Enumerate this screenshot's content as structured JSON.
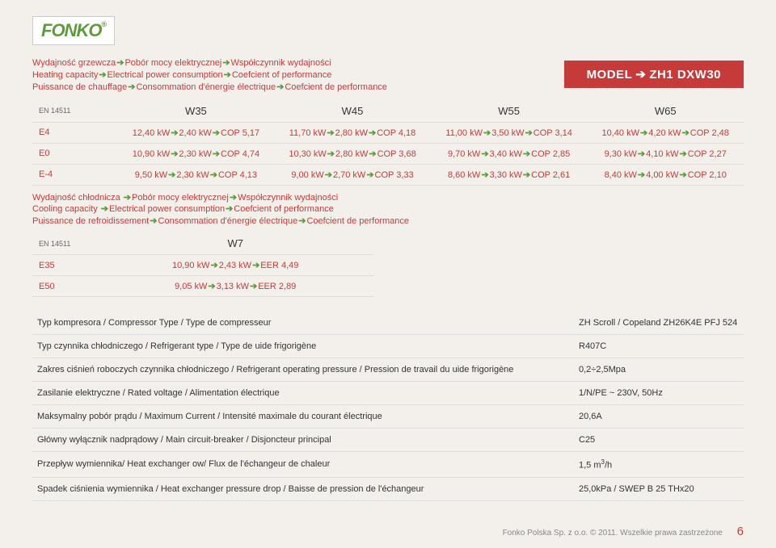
{
  "logo": "FONKO",
  "model": {
    "label": "MODEL",
    "value": "ZH1 DXW30"
  },
  "heatingDesc": {
    "pl": [
      "Wydajność grzewcza",
      "Pobór mocy elektrycznej",
      "Współczynnik wydajności"
    ],
    "en": [
      "Heating capacity",
      "Electrical power consumption",
      "Coefcient of performance"
    ],
    "fr": [
      "Puissance de chauffage",
      "Consommation d'énergie électrique",
      "Coefcient de  performance"
    ]
  },
  "heatHead": {
    "std": "EN 14511",
    "cols": [
      "W35",
      "W45",
      "W55",
      "W65"
    ]
  },
  "heatRows": [
    {
      "r": "E4",
      "c": [
        "12,40 kW➔2,40 kW➔COP 5,17",
        "11,70 kW➔2,80 kW➔COP 4,18",
        "11,00 kW➔3,50 kW➔COP 3,14",
        "10,40 kW➔4,20 kW➔COP 2,48"
      ]
    },
    {
      "r": "E0",
      "c": [
        "10,90 kW➔2,30 kW➔COP 4,74",
        "10,30 kW➔2,80 kW➔COP 3,68",
        "9,70 kW➔3,40 kW➔COP 2,85",
        "9,30 kW➔4,10 kW➔COP 2,27"
      ]
    },
    {
      "r": "E-4",
      "c": [
        "9,50 kW➔2,30 kW➔COP 4,13",
        "9,00 kW➔2,70 kW➔COP 3,33",
        "8,60 kW➔3,30 kW➔COP 2,61",
        "8,40 kW➔4,00 kW➔COP 2,10"
      ]
    }
  ],
  "coolingDesc": {
    "pl": [
      "Wydajność chłodnicza",
      "Pobór mocy elektrycznej",
      "Współczynnik wydajności"
    ],
    "en": [
      "Cooling capacity",
      "Electrical power consumption",
      "Coefcient of performance"
    ],
    "fr": [
      "Puissance de refroidissement",
      "Consommation d'énergie électrique",
      "Coefcient de  performance"
    ]
  },
  "coolHead": {
    "std": "EN 14511",
    "col": "W7"
  },
  "coolRows": [
    {
      "r": "E35",
      "v": "10,90 kW➔2,43 kW➔EER 4,49"
    },
    {
      "r": "E50",
      "v": "9,05 kW➔3,13 kW➔EER 2,89"
    }
  ],
  "spec": [
    {
      "l": "Typ kompresora / Compressor Type / Type de compresseur",
      "v": "ZH Scroll / Copeland ZH26K4E PFJ 524"
    },
    {
      "l": "Typ czynnika chłodniczego / Refrigerant type /  Type de uide frigorigène",
      "v": "R407C"
    },
    {
      "l": "Zakres ciśnień roboczych czynnika chłodniczego / Refrigerant operating pressure / Pression de travail du uide frigorigène",
      "v": "0,2÷2,5Mpa"
    },
    {
      "l": "Zasilanie elektryczne / Rated voltage / Alimentation électrique",
      "v": "1/N/PE ~ 230V, 50Hz"
    },
    {
      "l": "Maksymalny pobór prądu / Maximum Current / Intensité  maximale  du courant  électrique",
      "v": "20,6A"
    },
    {
      "l": "Główny wyłącznik nadprądowy / Main circuit-breaker / Disjoncteur principal",
      "v": "C25"
    },
    {
      "l": "Przepływ wymiennika/ Heat exchanger ow/ Flux de l'échangeur de chaleur",
      "v": "1,5 m³/h"
    },
    {
      "l": "Spadek ciśnienia wymiennika / Heat exchanger pressure drop / Baisse de pression de l'échangeur",
      "v": "25,0kPa / SWEP B 25 THx20"
    }
  ],
  "footer": {
    "text": "Fonko Polska Sp. z o.o. © 2011. Wszelkie prawa zastrzeżone",
    "page": "6"
  }
}
